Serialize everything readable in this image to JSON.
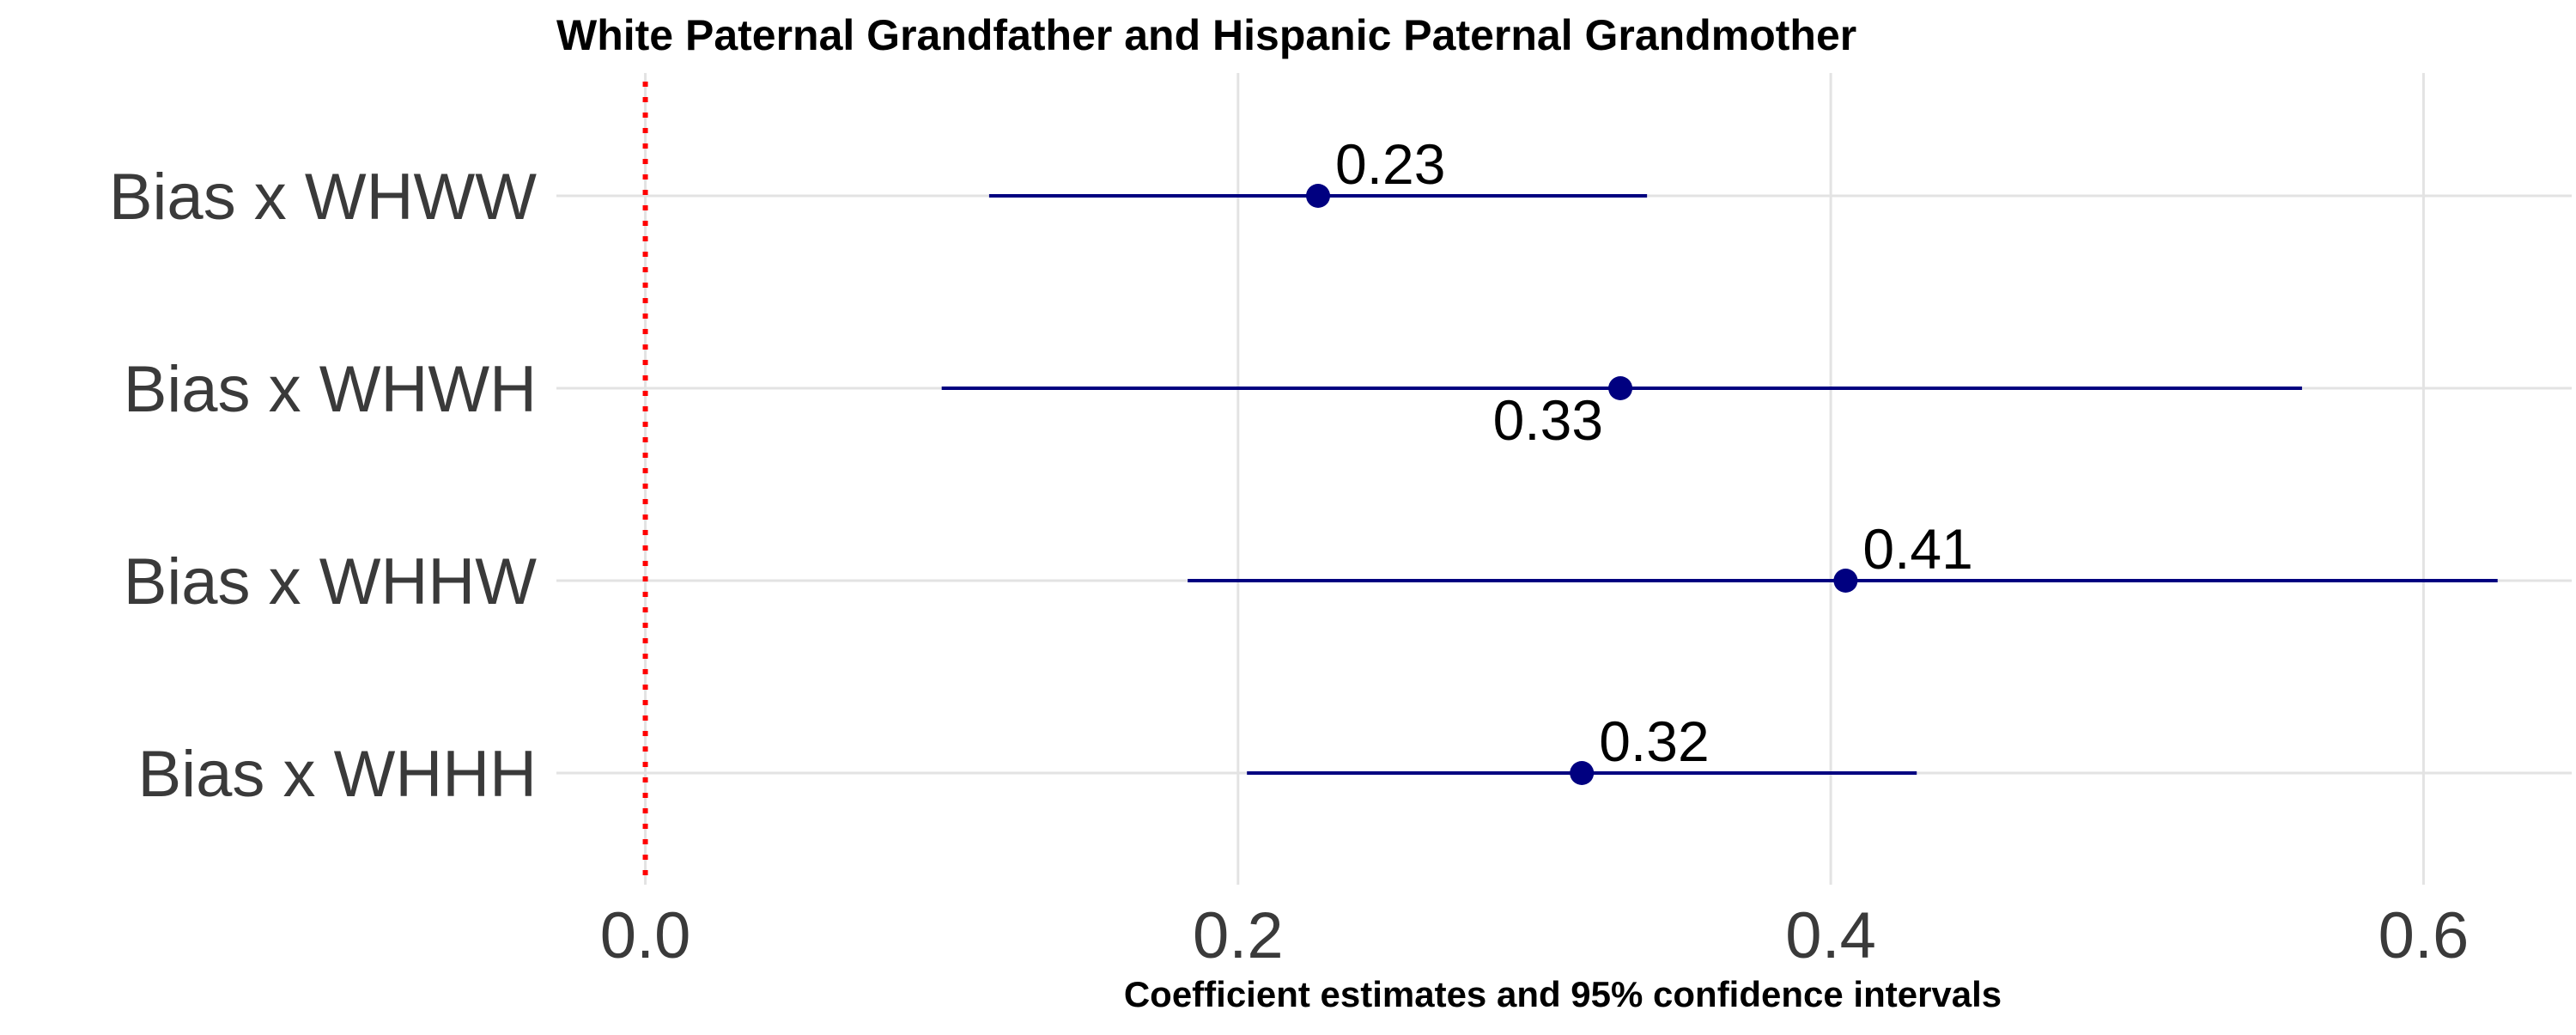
{
  "chart_data": {
    "type": "scatter",
    "title": "White Paternal Grandfather and Hispanic Paternal Grandmother",
    "xlabel": "Coefficient estimates and 95% confidence intervals",
    "ylabel": "",
    "xlim": [
      -0.03,
      0.65
    ],
    "x_ticks": [
      0.0,
      0.2,
      0.4,
      0.6
    ],
    "x_tick_labels": [
      "0.0",
      "0.2",
      "0.4",
      "0.6"
    ],
    "categories": [
      "Bias x WHWW",
      "Bias x WHWH",
      "Bias x WHHW",
      "Bias x WHHH"
    ],
    "estimates": [
      0.227,
      0.329,
      0.405,
      0.316
    ],
    "ci_low": [
      0.116,
      0.1,
      0.183,
      0.203
    ],
    "ci_high": [
      0.338,
      0.559,
      0.625,
      0.429
    ],
    "labels": [
      "0.23",
      "0.33",
      "0.41",
      "0.32"
    ],
    "label_side": [
      "above",
      "below",
      "above",
      "above"
    ],
    "reference_line": 0.0,
    "grid": true,
    "legend": "none",
    "colors": {
      "point": "#000080",
      "interval": "#000080",
      "reference": "#ff0000",
      "grid": "#e3e3e3"
    }
  }
}
